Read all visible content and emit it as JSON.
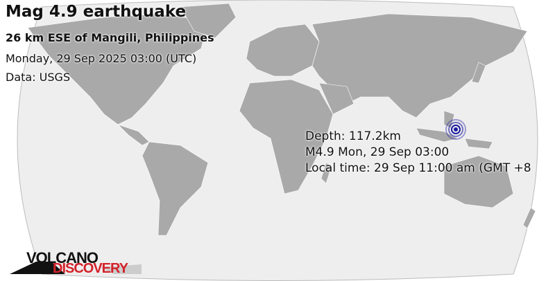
{
  "header": {
    "title": "Mag 4.9 earthquake",
    "location": "26 km ESE of Mangili, Philippines",
    "datetime": "Monday, 29 Sep 2025 03:00 (UTC)",
    "source": "Data: USGS"
  },
  "event": {
    "depth": "Depth: 117.2km",
    "summary": "M4.9 Mon, 29 Sep 03:00",
    "local_time": "Local time: 29 Sep 11:00 am (GMT +8"
  },
  "marker": {
    "icon": "epicenter-rings-icon",
    "color": "#1a1aa0"
  },
  "logo": {
    "line1": "VOLCANO",
    "line2": "DISCOVERY",
    "accent": "#d4212a"
  },
  "colors": {
    "land": "#a9a9a9",
    "ocean": "#eeeeee"
  }
}
